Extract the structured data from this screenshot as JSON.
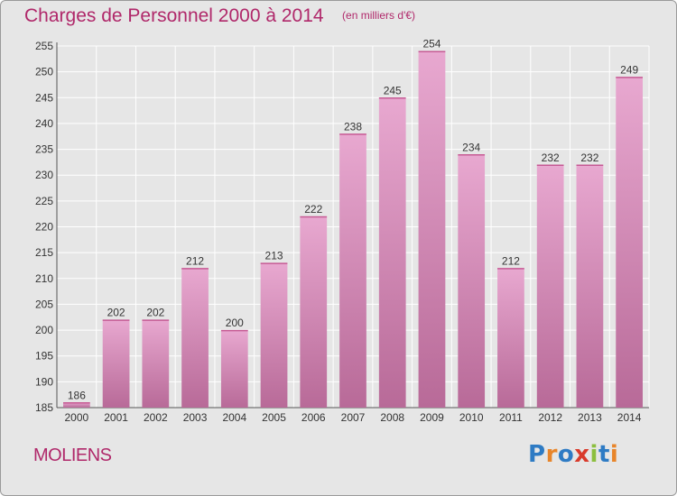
{
  "header": {
    "title": "Charges de Personnel 2000 à 2014",
    "subtitle": "(en milliers d'€)"
  },
  "footer": {
    "commune": "MOLIENS",
    "logo": "Proxiti",
    "logo_letters": [
      {
        "ch": "P",
        "color": "#2e7bc4"
      },
      {
        "ch": "r",
        "color": "#e8852a"
      },
      {
        "ch": "o",
        "color": "#2e7bc4"
      },
      {
        "ch": "x",
        "color": "#d93a2b"
      },
      {
        "ch": "i",
        "color": "#8cbf3f"
      },
      {
        "ch": "t",
        "color": "#2e7bc4"
      },
      {
        "ch": "i",
        "color": "#e8852a"
      }
    ]
  },
  "colors": {
    "accent": "#b0286a",
    "bar_top": "#e8a8d0",
    "bar_bottom": "#b86a98",
    "plot_bg": "#e6e6e6",
    "grid": "#ffffff"
  },
  "chart_data": {
    "type": "bar",
    "categories": [
      "2000",
      "2001",
      "2002",
      "2003",
      "2004",
      "2005",
      "2006",
      "2007",
      "2008",
      "2009",
      "2010",
      "2011",
      "2012",
      "2013",
      "2014"
    ],
    "values": [
      186,
      202,
      202,
      212,
      200,
      213,
      222,
      238,
      245,
      254,
      234,
      212,
      232,
      232,
      249
    ],
    "ylim": [
      185,
      255
    ],
    "yticks": [
      185,
      190,
      195,
      200,
      205,
      210,
      215,
      220,
      225,
      230,
      235,
      240,
      245,
      250,
      255
    ],
    "grid": true,
    "data_labels": true
  }
}
